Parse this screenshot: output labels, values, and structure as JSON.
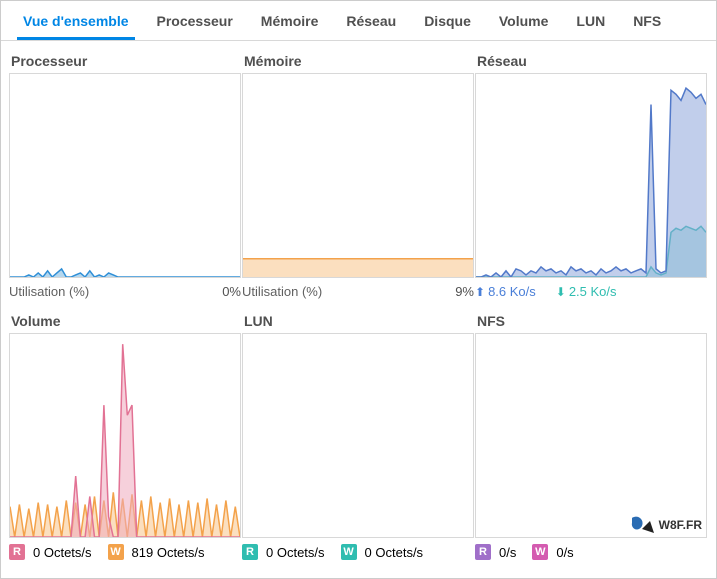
{
  "tabs": {
    "overview": "Vue d'ensemble",
    "cpu": "Processeur",
    "memory": "Mémoire",
    "network": "Réseau",
    "disk": "Disque",
    "volume": "Volume",
    "lun": "LUN",
    "nfs": "NFS",
    "active": "overview"
  },
  "cards": {
    "cpu": {
      "title": "Processeur",
      "util_label": "Utilisation  (%)",
      "util_value": "0%",
      "series_color": "#2f8fd6",
      "fill_color": "#79b7e0",
      "bg": "#ffffff",
      "values": [
        0,
        0,
        0,
        0,
        1,
        0,
        2,
        0,
        3,
        0,
        2,
        4,
        0,
        0,
        1,
        2,
        0,
        3,
        0,
        1,
        0,
        2,
        1,
        0,
        0,
        0,
        0,
        0,
        0,
        0,
        0,
        0,
        0,
        0,
        0,
        0,
        0,
        0,
        0,
        0,
        0,
        0,
        0,
        0,
        0,
        0,
        0,
        0,
        0,
        0
      ],
      "ymax": 100
    },
    "memory": {
      "title": "Mémoire",
      "util_label": "Utilisation  (%)",
      "util_value": "9%",
      "series_color": "#f3a24b",
      "fill_color": "#f7c58b",
      "bg": "#ffffff",
      "values": [
        9,
        9,
        9,
        9,
        9,
        9,
        9,
        9,
        9,
        9,
        9,
        9,
        9,
        9,
        9,
        9,
        9,
        9,
        9,
        9,
        9,
        9,
        9,
        9,
        9,
        9,
        9,
        9,
        9,
        9,
        9,
        9,
        9,
        9,
        9,
        9,
        9,
        9,
        9,
        9,
        9,
        9,
        9,
        9,
        9,
        9,
        9,
        9,
        9,
        9
      ],
      "ymax": 100
    },
    "network": {
      "title": "Réseau",
      "up_label": "8.6 Ko/s",
      "down_label": "2.5 Ko/s",
      "up_color": "#5279c9",
      "up_fill": "#8ea6db",
      "down_color": "#2fbdb0",
      "down_fill": "#8fd8d3",
      "bg": "#ffffff",
      "ymax": 10,
      "up_values": [
        0,
        0,
        0.1,
        0,
        0.2,
        0,
        0.3,
        0,
        0.4,
        0.3,
        0.1,
        0.3,
        0.2,
        0.5,
        0.3,
        0.4,
        0.2,
        0.3,
        0.1,
        0.5,
        0.3,
        0.4,
        0.2,
        0.3,
        0.1,
        0.4,
        0.2,
        0.3,
        0.5,
        0.3,
        0.4,
        0.2,
        0.3,
        0.4,
        0.2,
        8.5,
        0.4,
        0.2,
        0.3,
        9.2,
        9.0,
        8.7,
        9.3,
        9.1,
        8.8,
        9.0,
        8.5
      ],
      "down_values": [
        0,
        0,
        0,
        0,
        0,
        0,
        0,
        0,
        0,
        0,
        0,
        0,
        0,
        0,
        0,
        0,
        0,
        0,
        0,
        0,
        0,
        0,
        0,
        0,
        0,
        0,
        0,
        0,
        0,
        0,
        0,
        0,
        0,
        0,
        0,
        0.5,
        0.2,
        0.1,
        0.2,
        2.2,
        2.4,
        2.3,
        2.5,
        2.4,
        2.3,
        2.5,
        2.2
      ]
    },
    "volume": {
      "title": "Volume",
      "read_label": "0 Octets/s",
      "write_label": "819 Octets/s",
      "read_color": "#e27294",
      "read_fill": "#efa9be",
      "write_color": "#f3a24b",
      "write_fill": "#f7c58b",
      "read_badge_bg": "#e27294",
      "write_badge_bg": "#f3a24b",
      "bg": "#ffffff",
      "ymax": 1000,
      "read_values": [
        0,
        0,
        0,
        0,
        0,
        0,
        0,
        0,
        0,
        0,
        0,
        0,
        0,
        0,
        300,
        0,
        0,
        200,
        0,
        0,
        650,
        100,
        0,
        0,
        950,
        600,
        650,
        0,
        0,
        0,
        0,
        0,
        0,
        0,
        0,
        0,
        0,
        0,
        0,
        0,
        0,
        0,
        0,
        0,
        0,
        0,
        0,
        0,
        0,
        0
      ],
      "write_values": [
        150,
        0,
        160,
        0,
        140,
        0,
        170,
        0,
        160,
        0,
        150,
        0,
        180,
        0,
        170,
        0,
        160,
        0,
        200,
        0,
        180,
        0,
        220,
        0,
        190,
        0,
        210,
        0,
        180,
        0,
        200,
        0,
        170,
        0,
        190,
        0,
        160,
        0,
        180,
        0,
        170,
        0,
        190,
        0,
        160,
        0,
        180,
        0,
        150,
        0
      ]
    },
    "lun": {
      "title": "LUN",
      "read_label": "0 Octets/s",
      "write_label": "0 Octets/s",
      "read_badge_bg": "#2fbdb0",
      "write_badge_bg": "#2fbdb0",
      "read_color": "#2fbdb0",
      "write_color": "#2fbdb0",
      "bg": "#ffffff",
      "ymax": 100,
      "values": [
        0,
        0,
        0,
        0,
        0,
        0,
        0,
        0,
        0,
        0,
        0,
        0,
        0,
        0,
        0,
        0,
        0,
        0,
        0,
        0,
        0,
        0,
        0,
        0,
        0,
        0,
        0,
        0,
        0,
        0,
        0,
        0,
        0,
        0,
        0,
        0,
        0,
        0,
        0,
        0,
        0,
        0,
        0,
        0,
        0,
        0,
        0,
        0,
        0,
        0
      ]
    },
    "nfs": {
      "title": "NFS",
      "read_label": "0/s",
      "write_label": "0/s",
      "read_badge_bg": "#a06fc9",
      "write_badge_bg": "#d45bb0",
      "read_color": "#a06fc9",
      "write_color": "#d45bb0",
      "bg": "#ffffff",
      "ymax": 100,
      "values": [
        0,
        0,
        0,
        0,
        0,
        0,
        0,
        0,
        0,
        0,
        0,
        0,
        0,
        0,
        0,
        0,
        0,
        0,
        0,
        0,
        0,
        0,
        0,
        0,
        0,
        0,
        0,
        0,
        0,
        0,
        0,
        0,
        0,
        0,
        0,
        0,
        0,
        0,
        0,
        0,
        0,
        0,
        0,
        0,
        0,
        0,
        0,
        0,
        0,
        0
      ]
    }
  },
  "labels": {
    "badge_r": "R",
    "badge_w": "W",
    "watermark": "W8F.FR"
  },
  "colors": {
    "accent": "#0086e5",
    "text": "#505050",
    "border": "#d8d8d8"
  }
}
